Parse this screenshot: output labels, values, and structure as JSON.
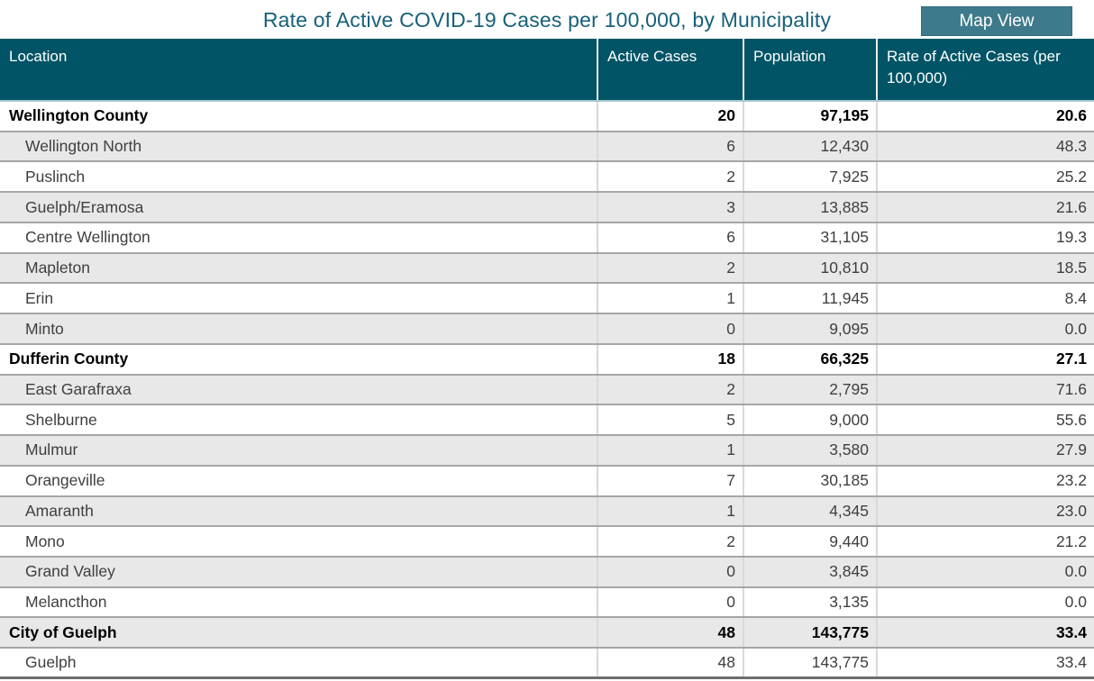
{
  "title": "Rate of Active COVID-19 Cases per 100,000, by Municipality",
  "map_view_button": {
    "label": "Map View"
  },
  "colors": {
    "header_background": "#015466",
    "title_text": "#17607A",
    "button_background": "#3F7A8C",
    "button_border": "#2E6B7C",
    "alternate_row_background": "#E8E8E8",
    "row_border": "#A6A6A6",
    "header_bottom_border": "#A9C7D2"
  },
  "table": {
    "columns": [
      {
        "label": "Location"
      },
      {
        "label": "Active Cases"
      },
      {
        "label": "Population"
      },
      {
        "label": "Rate of Active Cases (per 100,000)"
      }
    ],
    "rows": [
      {
        "location": "Wellington County",
        "level": "county",
        "active_cases": "20",
        "population": "97,195",
        "rate": "20.6"
      },
      {
        "location": "Wellington North",
        "level": "municipality",
        "active_cases": "6",
        "population": "12,430",
        "rate": "48.3"
      },
      {
        "location": "Puslinch",
        "level": "municipality",
        "active_cases": "2",
        "population": "7,925",
        "rate": "25.2"
      },
      {
        "location": "Guelph/Eramosa",
        "level": "municipality",
        "active_cases": "3",
        "population": "13,885",
        "rate": "21.6"
      },
      {
        "location": "Centre Wellington",
        "level": "municipality",
        "active_cases": "6",
        "population": "31,105",
        "rate": "19.3"
      },
      {
        "location": "Mapleton",
        "level": "municipality",
        "active_cases": "2",
        "population": "10,810",
        "rate": "18.5"
      },
      {
        "location": "Erin",
        "level": "municipality",
        "active_cases": "1",
        "population": "11,945",
        "rate": "8.4"
      },
      {
        "location": "Minto",
        "level": "municipality",
        "active_cases": "0",
        "population": "9,095",
        "rate": "0.0"
      },
      {
        "location": "Dufferin County",
        "level": "county",
        "active_cases": "18",
        "population": "66,325",
        "rate": "27.1"
      },
      {
        "location": "East Garafraxa",
        "level": "municipality",
        "active_cases": "2",
        "population": "2,795",
        "rate": "71.6"
      },
      {
        "location": "Shelburne",
        "level": "municipality",
        "active_cases": "5",
        "population": "9,000",
        "rate": "55.6"
      },
      {
        "location": "Mulmur",
        "level": "municipality",
        "active_cases": "1",
        "population": "3,580",
        "rate": "27.9"
      },
      {
        "location": "Orangeville",
        "level": "municipality",
        "active_cases": "7",
        "population": "30,185",
        "rate": "23.2"
      },
      {
        "location": "Amaranth",
        "level": "municipality",
        "active_cases": "1",
        "population": "4,345",
        "rate": "23.0"
      },
      {
        "location": "Mono",
        "level": "municipality",
        "active_cases": "2",
        "population": "9,440",
        "rate": "21.2"
      },
      {
        "location": "Grand Valley",
        "level": "municipality",
        "active_cases": "0",
        "population": "3,845",
        "rate": "0.0"
      },
      {
        "location": "Melancthon",
        "level": "municipality",
        "active_cases": "0",
        "population": "3,135",
        "rate": "0.0"
      },
      {
        "location": "City of Guelph",
        "level": "county",
        "active_cases": "48",
        "population": "143,775",
        "rate": "33.4"
      },
      {
        "location": "Guelph",
        "level": "municipality",
        "active_cases": "48",
        "population": "143,775",
        "rate": "33.4"
      }
    ]
  }
}
